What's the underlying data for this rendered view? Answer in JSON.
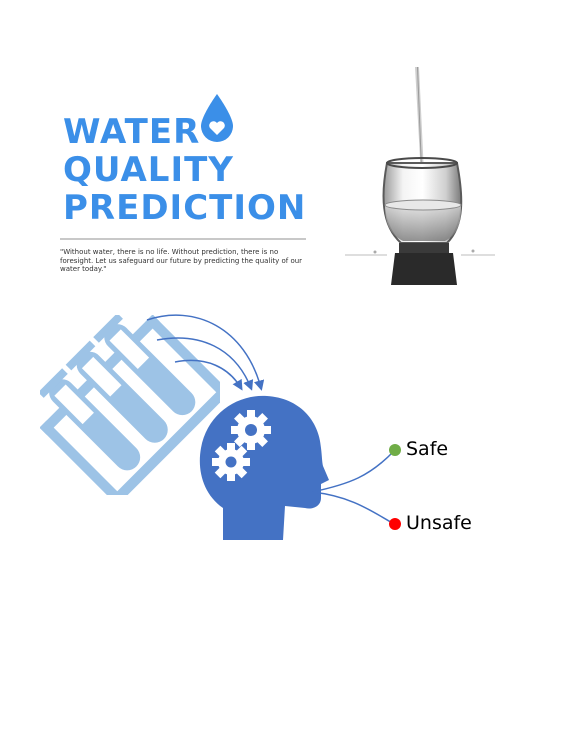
{
  "poster": {
    "title_lines": [
      "WATER",
      "QUALITY",
      "PREDICTION"
    ],
    "quote": "\"Without water, there is no life. Without prediction, there is no foresight. Let us safeguard our future by predicting the quality of our water today.\""
  },
  "diagram": {
    "outcomes": [
      {
        "label": "Safe",
        "color": "#70ad47"
      },
      {
        "label": "Unsafe",
        "color": "#ff0000"
      }
    ]
  },
  "colors": {
    "title": "#3b8fe8",
    "head": "#4472c4",
    "tubes": "#9dc3e6",
    "arrows": "#4472c4"
  },
  "icons": [
    "water-drop-heart-icon",
    "water-glass-image",
    "test-tube-rack-icon",
    "head-gears-icon"
  ]
}
